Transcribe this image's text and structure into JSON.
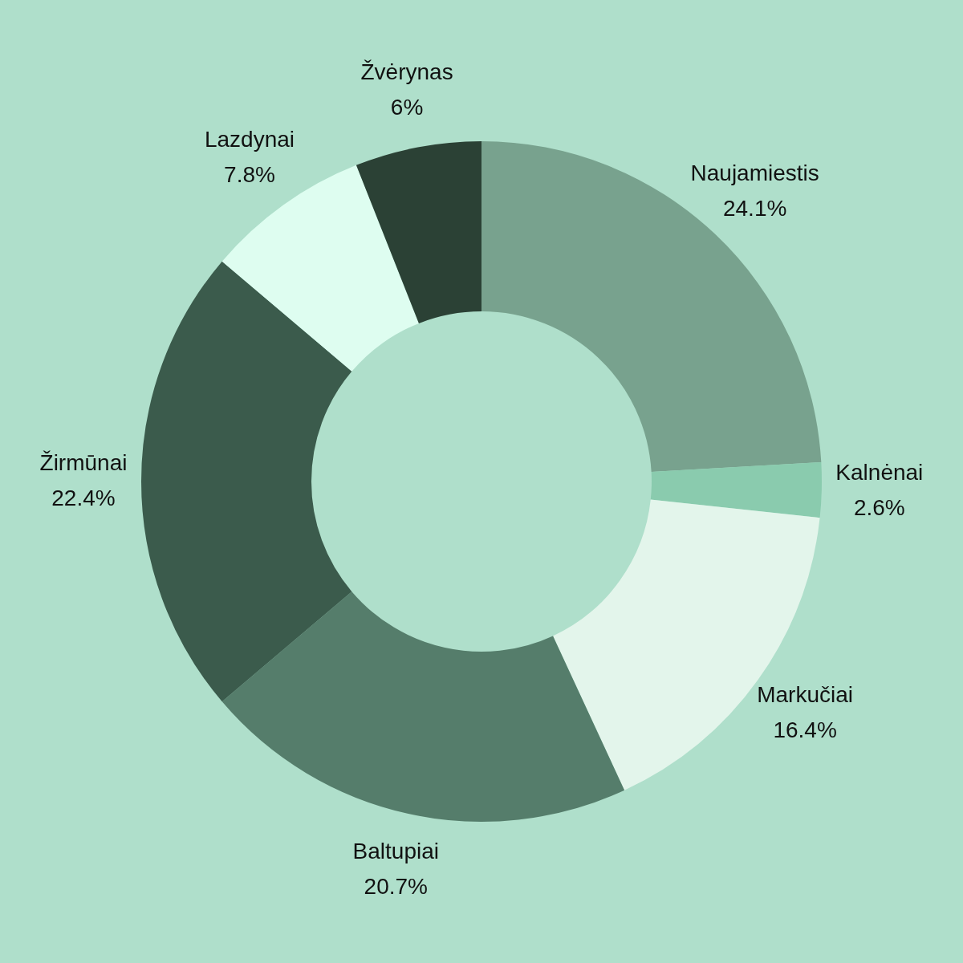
{
  "chart_data": {
    "type": "donut",
    "categories": [
      "Naujamiestis",
      "Kalnėnai",
      "Markučiai",
      "Baltupiai",
      "Žirmūnai",
      "Lazdynai",
      "Žvėrynas"
    ],
    "values": [
      24.1,
      2.6,
      16.4,
      20.7,
      22.4,
      7.8,
      6
    ],
    "colors": [
      "#78a28e",
      "#8acbae",
      "#e3f5eb",
      "#557d6b",
      "#3b5b4c",
      "#defdf0",
      "#2b4135"
    ],
    "value_labels": [
      "24.1%",
      "2.6%",
      "16.4%",
      "20.7%",
      "22.4%",
      "7.8%",
      "6%"
    ],
    "legend": false
  }
}
